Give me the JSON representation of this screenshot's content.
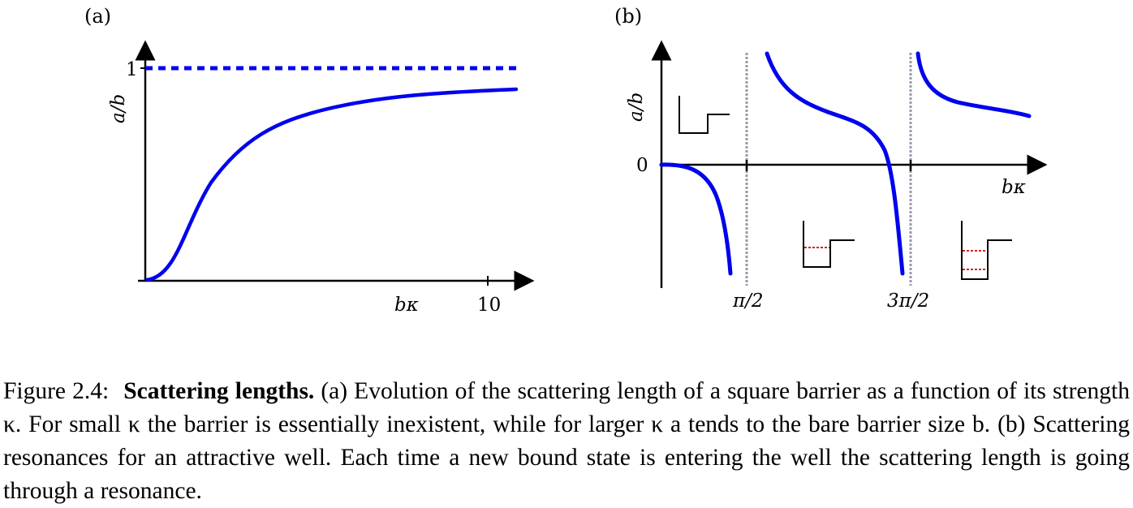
{
  "figure": {
    "panel_a": {
      "label": "(a)",
      "ylabel": "a/b",
      "xlabel": "bκ",
      "ytick_label": "1",
      "xtick_label": "10"
    },
    "panel_b": {
      "label": "(b)",
      "ylabel": "a/b",
      "xlabel": "bκ",
      "ytick_label": "0",
      "xtick_labels": [
        "π/2",
        "3π/2"
      ]
    }
  },
  "chart_data": [
    {
      "type": "line",
      "panel": "(a)",
      "xlabel": "bκ",
      "ylabel": "a/b",
      "xlim": [
        0,
        11
      ],
      "ylim": [
        0,
        1.03
      ],
      "xticks": [
        10
      ],
      "yticks": [
        1
      ],
      "series": [
        {
          "style": "solid",
          "x": [
            0,
            0.5,
            1,
            1.5,
            2,
            3,
            4,
            5,
            6,
            7,
            8,
            9,
            10,
            10.8
          ],
          "y": [
            0,
            0.08,
            0.24,
            0.42,
            0.55,
            0.69,
            0.76,
            0.8,
            0.83,
            0.85,
            0.87,
            0.88,
            0.89,
            0.9
          ]
        },
        {
          "style": "dashed",
          "x": [
            0,
            10.8
          ],
          "y": [
            1,
            1
          ]
        }
      ],
      "colors": {
        "curve": "#0000ee"
      }
    },
    {
      "type": "line",
      "panel": "(b)",
      "xlabel": "bκ",
      "ylabel": "a/b",
      "xticks": [
        "π/2",
        "3π/2"
      ],
      "yticks": [
        0
      ],
      "asymptotes": [
        "π/2",
        "3π/2"
      ],
      "colors": {
        "curve": "#0000ee",
        "asymptote": "#9a9aaa",
        "bound_state": "#cc0000"
      },
      "insets": [
        {
          "position": "before π/2",
          "bound_states": 0
        },
        {
          "position": "between π/2 and 3π/2",
          "bound_states": 1
        },
        {
          "position": "after 3π/2",
          "bound_states": 2
        }
      ]
    }
  ],
  "caption": {
    "number": "Figure 2.4:",
    "title": "Scattering lengths.",
    "body": "(a) Evolution of the scattering length of a square barrier as a function of its strength κ. For small κ the barrier is essentially inexistent, while for larger κ a tends to the bare barrier size b. (b) Scattering resonances for an attractive well. Each time a new bound state is entering the well the scattering length is going through a resonance."
  }
}
